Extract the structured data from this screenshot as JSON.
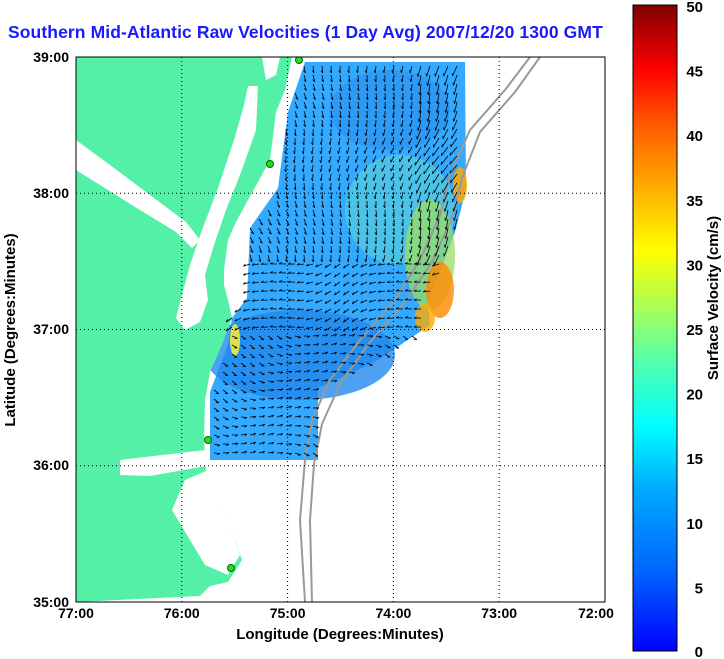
{
  "title": "Southern Mid-Atlantic Raw Velocities (1 Day Avg) 2007/12/20 1300 GMT",
  "x_axis": {
    "label": "Longitude (Degrees:Minutes)",
    "ticks": [
      "77:00",
      "76:00",
      "75:00",
      "74:00",
      "73:00",
      "72:00"
    ]
  },
  "y_axis": {
    "label": "Latitude (Degrees:Minutes)",
    "ticks": [
      "39:00",
      "38:00",
      "37:00",
      "36:00",
      "35:00"
    ]
  },
  "colorbar": {
    "label": "Surface Velocity (cm/s)",
    "ticks": [
      "50",
      "45",
      "40",
      "35",
      "30",
      "25",
      "20",
      "15",
      "10",
      "5",
      "0"
    ],
    "range": [
      0,
      50
    ],
    "colormap": "jet"
  },
  "map": {
    "lon_range_deg_west": [
      77,
      72
    ],
    "lat_range_deg_north": [
      35,
      39
    ],
    "grid": "dotted",
    "land_color": "#55f0a8",
    "water_color": "#ffffff",
    "bathymetry_color": "#999999",
    "station_marker_color": "#22dd22"
  }
}
